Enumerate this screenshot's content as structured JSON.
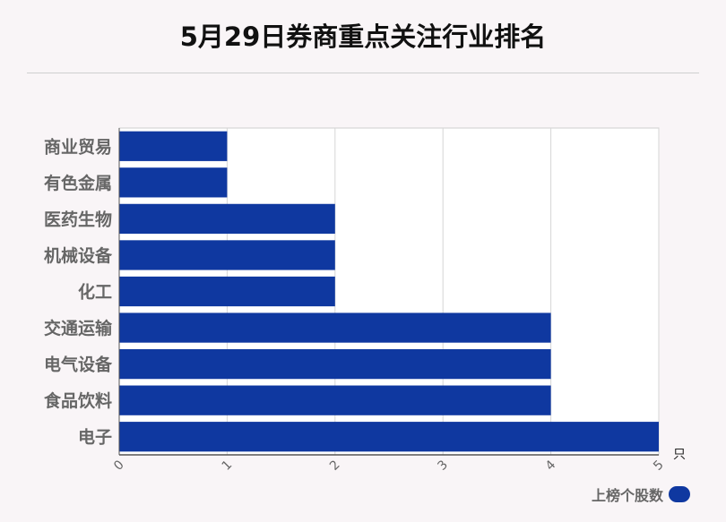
{
  "chart_data": {
    "type": "bar",
    "orientation": "horizontal",
    "title": "5月29日券商重点关注行业排名",
    "categories": [
      "商业贸易",
      "有色金属",
      "医药生物",
      "机械设备",
      "化工",
      "交通运输",
      "电气设备",
      "食品饮料",
      "电子"
    ],
    "series": [
      {
        "name": "上榜个股数",
        "values": [
          1,
          1,
          2,
          2,
          2,
          4,
          4,
          4,
          5
        ],
        "color": "#0f38a0"
      }
    ],
    "xlim": [
      0,
      5
    ],
    "xticks": [
      "0",
      "1",
      "2",
      "3",
      "4",
      "5"
    ],
    "xunit": "只",
    "grid": true,
    "legend_position": "bottom-right"
  }
}
